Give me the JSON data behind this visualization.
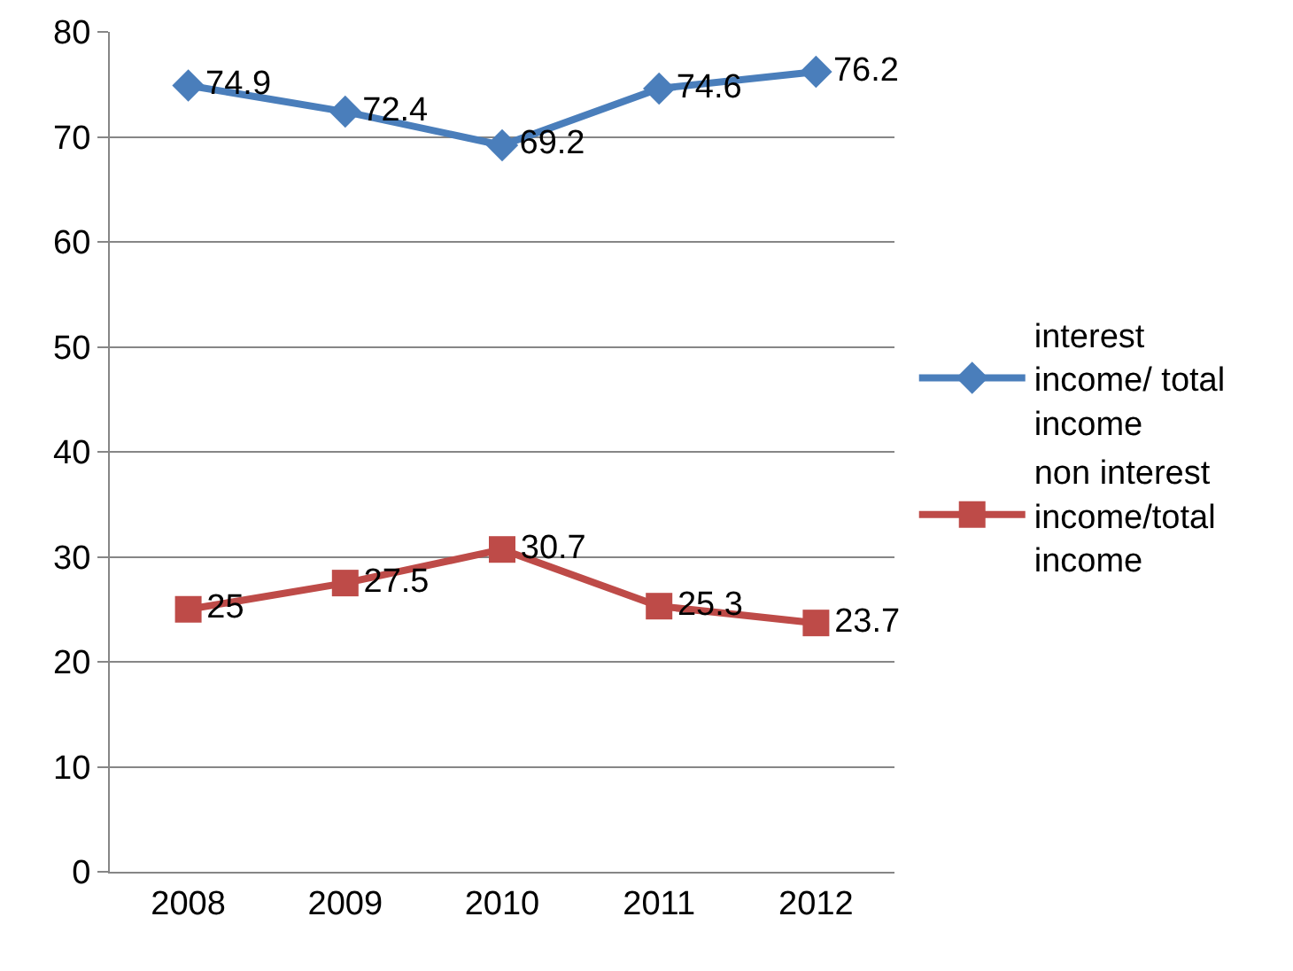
{
  "chart_data": {
    "type": "line",
    "categories": [
      "2008",
      "2009",
      "2010",
      "2011",
      "2012"
    ],
    "series": [
      {
        "name": "interest income/ total income",
        "color": "#4a7ebb",
        "marker": "diamond",
        "values": [
          74.9,
          72.4,
          69.2,
          74.6,
          76.2
        ]
      },
      {
        "name": "non interest income/total income",
        "color": "#be4b48",
        "marker": "square",
        "values": [
          25,
          27.5,
          30.7,
          25.3,
          23.7
        ]
      }
    ],
    "ylim": [
      0,
      80
    ],
    "yticks": [
      0,
      10,
      20,
      30,
      40,
      50,
      60,
      70,
      80
    ],
    "grid": "y",
    "legend": "right",
    "data_labels": true
  }
}
